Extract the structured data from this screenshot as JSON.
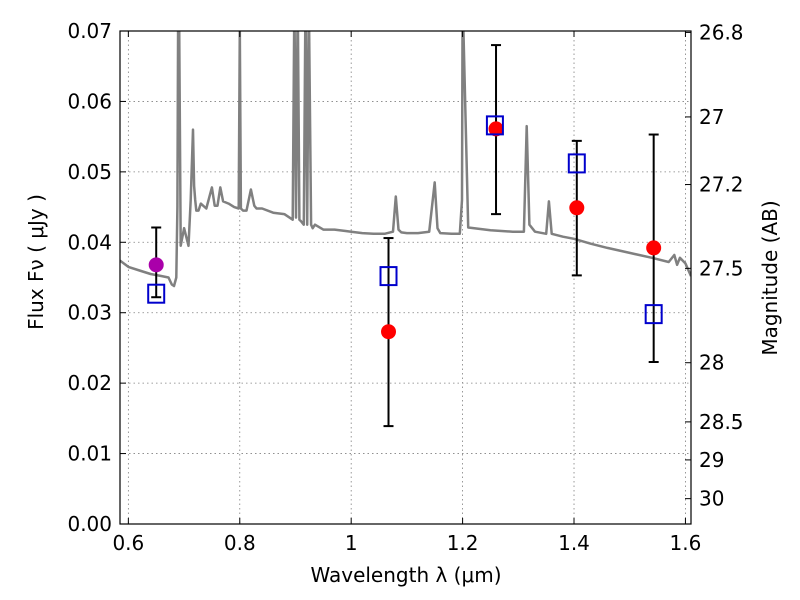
{
  "chart_data": {
    "type": "scatter",
    "xlabel": "Wavelength  λ (μm)",
    "ylabel": "Flux  Fν  ( μJy )",
    "ylabel_right": "Magnitude (AB)",
    "xlim": [
      0.585,
      1.61
    ],
    "ylim": [
      0.0,
      0.07
    ],
    "grid": true,
    "x_ticks": [
      0.6,
      0.8,
      1.0,
      1.2,
      1.4,
      1.6
    ],
    "x_tick_labels": [
      "0.6",
      "0.8",
      "1",
      "1.2",
      "1.4",
      "1.6"
    ],
    "y_ticks": [
      0.0,
      0.01,
      0.02,
      0.03,
      0.04,
      0.05,
      0.06,
      0.07
    ],
    "y_tick_labels": [
      "0.00",
      "0.01",
      "0.02",
      "0.03",
      "0.04",
      "0.05",
      "0.06",
      "0.07"
    ],
    "right_ticks": [
      {
        "flux": 0.0698,
        "label": "26.8"
      },
      {
        "flux": 0.0578,
        "label": "27"
      },
      {
        "flux": 0.0482,
        "label": "27.2"
      },
      {
        "flux": 0.0363,
        "label": "27.5"
      },
      {
        "flux": 0.0229,
        "label": "28"
      },
      {
        "flux": 0.0145,
        "label": "28.5"
      },
      {
        "flux": 0.0091,
        "label": "29"
      },
      {
        "flux": 0.0036,
        "label": "30"
      }
    ],
    "model_spectrum": {
      "color": "#808080",
      "x": [
        0.585,
        0.6,
        0.62,
        0.64,
        0.66,
        0.672,
        0.678,
        0.682,
        0.686,
        0.688,
        0.6895,
        0.691,
        0.694,
        0.7,
        0.708,
        0.712,
        0.716,
        0.718,
        0.72,
        0.722,
        0.726,
        0.73,
        0.74,
        0.75,
        0.755,
        0.76,
        0.765,
        0.77,
        0.78,
        0.79,
        0.798,
        0.8,
        0.802,
        0.806,
        0.812,
        0.82,
        0.826,
        0.83,
        0.84,
        0.86,
        0.88,
        0.895,
        0.898,
        0.901,
        0.904,
        0.907,
        0.91,
        0.915,
        0.918,
        0.921,
        0.924,
        0.928,
        0.931,
        0.935,
        0.95,
        0.97,
        0.99,
        1.0,
        1.02,
        1.04,
        1.06,
        1.075,
        1.08,
        1.085,
        1.09,
        1.1,
        1.12,
        1.14,
        1.15,
        1.155,
        1.16,
        1.18,
        1.195,
        1.199,
        1.2,
        1.21,
        1.25,
        1.29,
        1.31,
        1.315,
        1.32,
        1.33,
        1.35,
        1.355,
        1.36,
        1.38,
        1.4,
        1.43,
        1.46,
        1.5,
        1.54,
        1.57,
        1.58,
        1.585,
        1.59,
        1.6,
        1.61
      ],
      "y": [
        0.0374,
        0.0365,
        0.036,
        0.0355,
        0.0352,
        0.035,
        0.034,
        0.0338,
        0.035,
        0.045,
        0.075,
        0.075,
        0.0395,
        0.042,
        0.0395,
        0.046,
        0.056,
        0.048,
        0.046,
        0.0445,
        0.0445,
        0.0455,
        0.0448,
        0.0478,
        0.0452,
        0.0452,
        0.0478,
        0.0458,
        0.0455,
        0.045,
        0.0448,
        0.0705,
        0.0448,
        0.0445,
        0.0445,
        0.0475,
        0.0452,
        0.0448,
        0.0448,
        0.0442,
        0.044,
        0.0432,
        0.075,
        0.0435,
        0.075,
        0.0432,
        0.043,
        0.0425,
        0.075,
        0.0425,
        0.075,
        0.0425,
        0.042,
        0.0425,
        0.0418,
        0.0418,
        0.0416,
        0.0415,
        0.0413,
        0.0412,
        0.0412,
        0.0415,
        0.0465,
        0.0418,
        0.0414,
        0.0413,
        0.0413,
        0.0415,
        0.0485,
        0.042,
        0.0413,
        0.0412,
        0.0412,
        0.046,
        0.075,
        0.0421,
        0.0417,
        0.0415,
        0.0415,
        0.0565,
        0.0425,
        0.0415,
        0.0412,
        0.0458,
        0.0412,
        0.0408,
        0.0405,
        0.0398,
        0.0392,
        0.0385,
        0.0378,
        0.0372,
        0.0382,
        0.0368,
        0.0378,
        0.037,
        0.0352
      ]
    },
    "series": [
      {
        "color": "#ff0000",
        "marker": "circle",
        "points": [
          {
            "x": 1.067,
            "y": 0.0273,
            "err_lo": 0.0139,
            "err_hi": 0.0406
          },
          {
            "x": 1.26,
            "y": 0.0561,
            "err_lo": 0.044,
            "err_hi": 0.068
          },
          {
            "x": 1.405,
            "y": 0.0449,
            "err_lo": 0.0353,
            "err_hi": 0.0544
          },
          {
            "x": 1.543,
            "y": 0.0392,
            "err_lo": 0.023,
            "err_hi": 0.0553
          }
        ]
      },
      {
        "color": "#aa00aa",
        "marker": "circle",
        "points": [
          {
            "x": 0.65,
            "y": 0.0368,
            "err_lo": 0.0322,
            "err_hi": 0.0421
          }
        ]
      },
      {
        "color": "#0000cc",
        "marker": "open-square",
        "points": [
          {
            "x": 0.65,
            "y": 0.0327
          },
          {
            "x": 1.067,
            "y": 0.0352
          },
          {
            "x": 1.258,
            "y": 0.0566
          },
          {
            "x": 1.405,
            "y": 0.0512
          },
          {
            "x": 1.543,
            "y": 0.0298
          }
        ]
      }
    ]
  }
}
